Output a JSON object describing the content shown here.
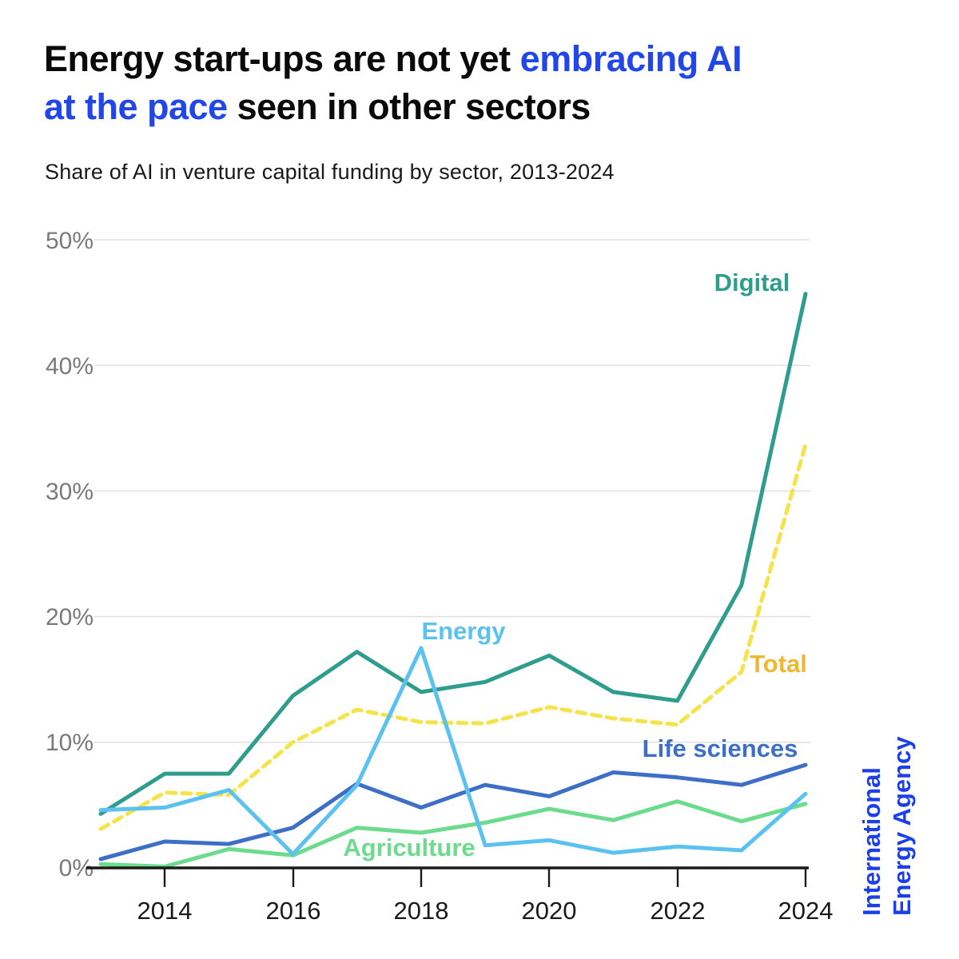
{
  "header": {
    "title_part1": "Energy start-ups are not yet ",
    "title_part2": "embracing AI",
    "title_part3": "at the pace",
    "title_part4": " seen in other sectors",
    "subtitle": "Share of AI in venture capital funding by sector, 2013-2024",
    "accent_color": "#2147e8"
  },
  "branding": {
    "line1": "International",
    "line2": "Energy Agency",
    "color": "#1c3fe8"
  },
  "chart_data": {
    "type": "line",
    "x": [
      2013,
      2014,
      2015,
      2016,
      2017,
      2018,
      2019,
      2020,
      2021,
      2022,
      2023,
      2024
    ],
    "series": [
      {
        "name": "Digital",
        "color": "#2f9d8d",
        "style": "solid",
        "values": [
          4.3,
          7.5,
          7.5,
          13.7,
          17.2,
          14.0,
          14.8,
          16.9,
          14.0,
          13.3,
          22.5,
          45.7
        ]
      },
      {
        "name": "Total",
        "color": "#f5e34c",
        "label_color": "#f0b832",
        "style": "dashed",
        "values": [
          3.1,
          6.0,
          5.8,
          10.0,
          12.6,
          11.6,
          11.5,
          12.8,
          11.9,
          11.4,
          15.6,
          33.7
        ]
      },
      {
        "name": "Energy",
        "color": "#5bc2f0",
        "style": "solid",
        "values": [
          4.6,
          4.8,
          6.2,
          1.1,
          6.6,
          17.5,
          1.8,
          2.2,
          1.2,
          1.7,
          1.4,
          5.9
        ]
      },
      {
        "name": "Life sciences",
        "color": "#3e6fc6",
        "style": "solid",
        "values": [
          0.7,
          2.1,
          1.9,
          3.2,
          6.7,
          4.8,
          6.6,
          5.7,
          7.6,
          7.2,
          6.6,
          8.2
        ]
      },
      {
        "name": "Agriculture",
        "color": "#6cdb8d",
        "style": "solid",
        "values": [
          0.3,
          0.1,
          1.5,
          1.0,
          3.2,
          2.8,
          3.6,
          4.7,
          3.8,
          5.3,
          3.7,
          5.1
        ]
      }
    ],
    "ylim": [
      0,
      50
    ],
    "yticks": [
      "0%",
      "10%",
      "20%",
      "30%",
      "40%",
      "50%"
    ],
    "xticks": [
      "2014",
      "2016",
      "2018",
      "2020",
      "2022",
      "2024"
    ],
    "grid": "horizontal gridlines at each 10%",
    "legend": "inline labels next to lines",
    "title": "Energy start-ups are not yet embracing AI at the pace seen in other sectors",
    "subtitle": "Share of AI in venture capital funding by sector, 2013-2024"
  }
}
